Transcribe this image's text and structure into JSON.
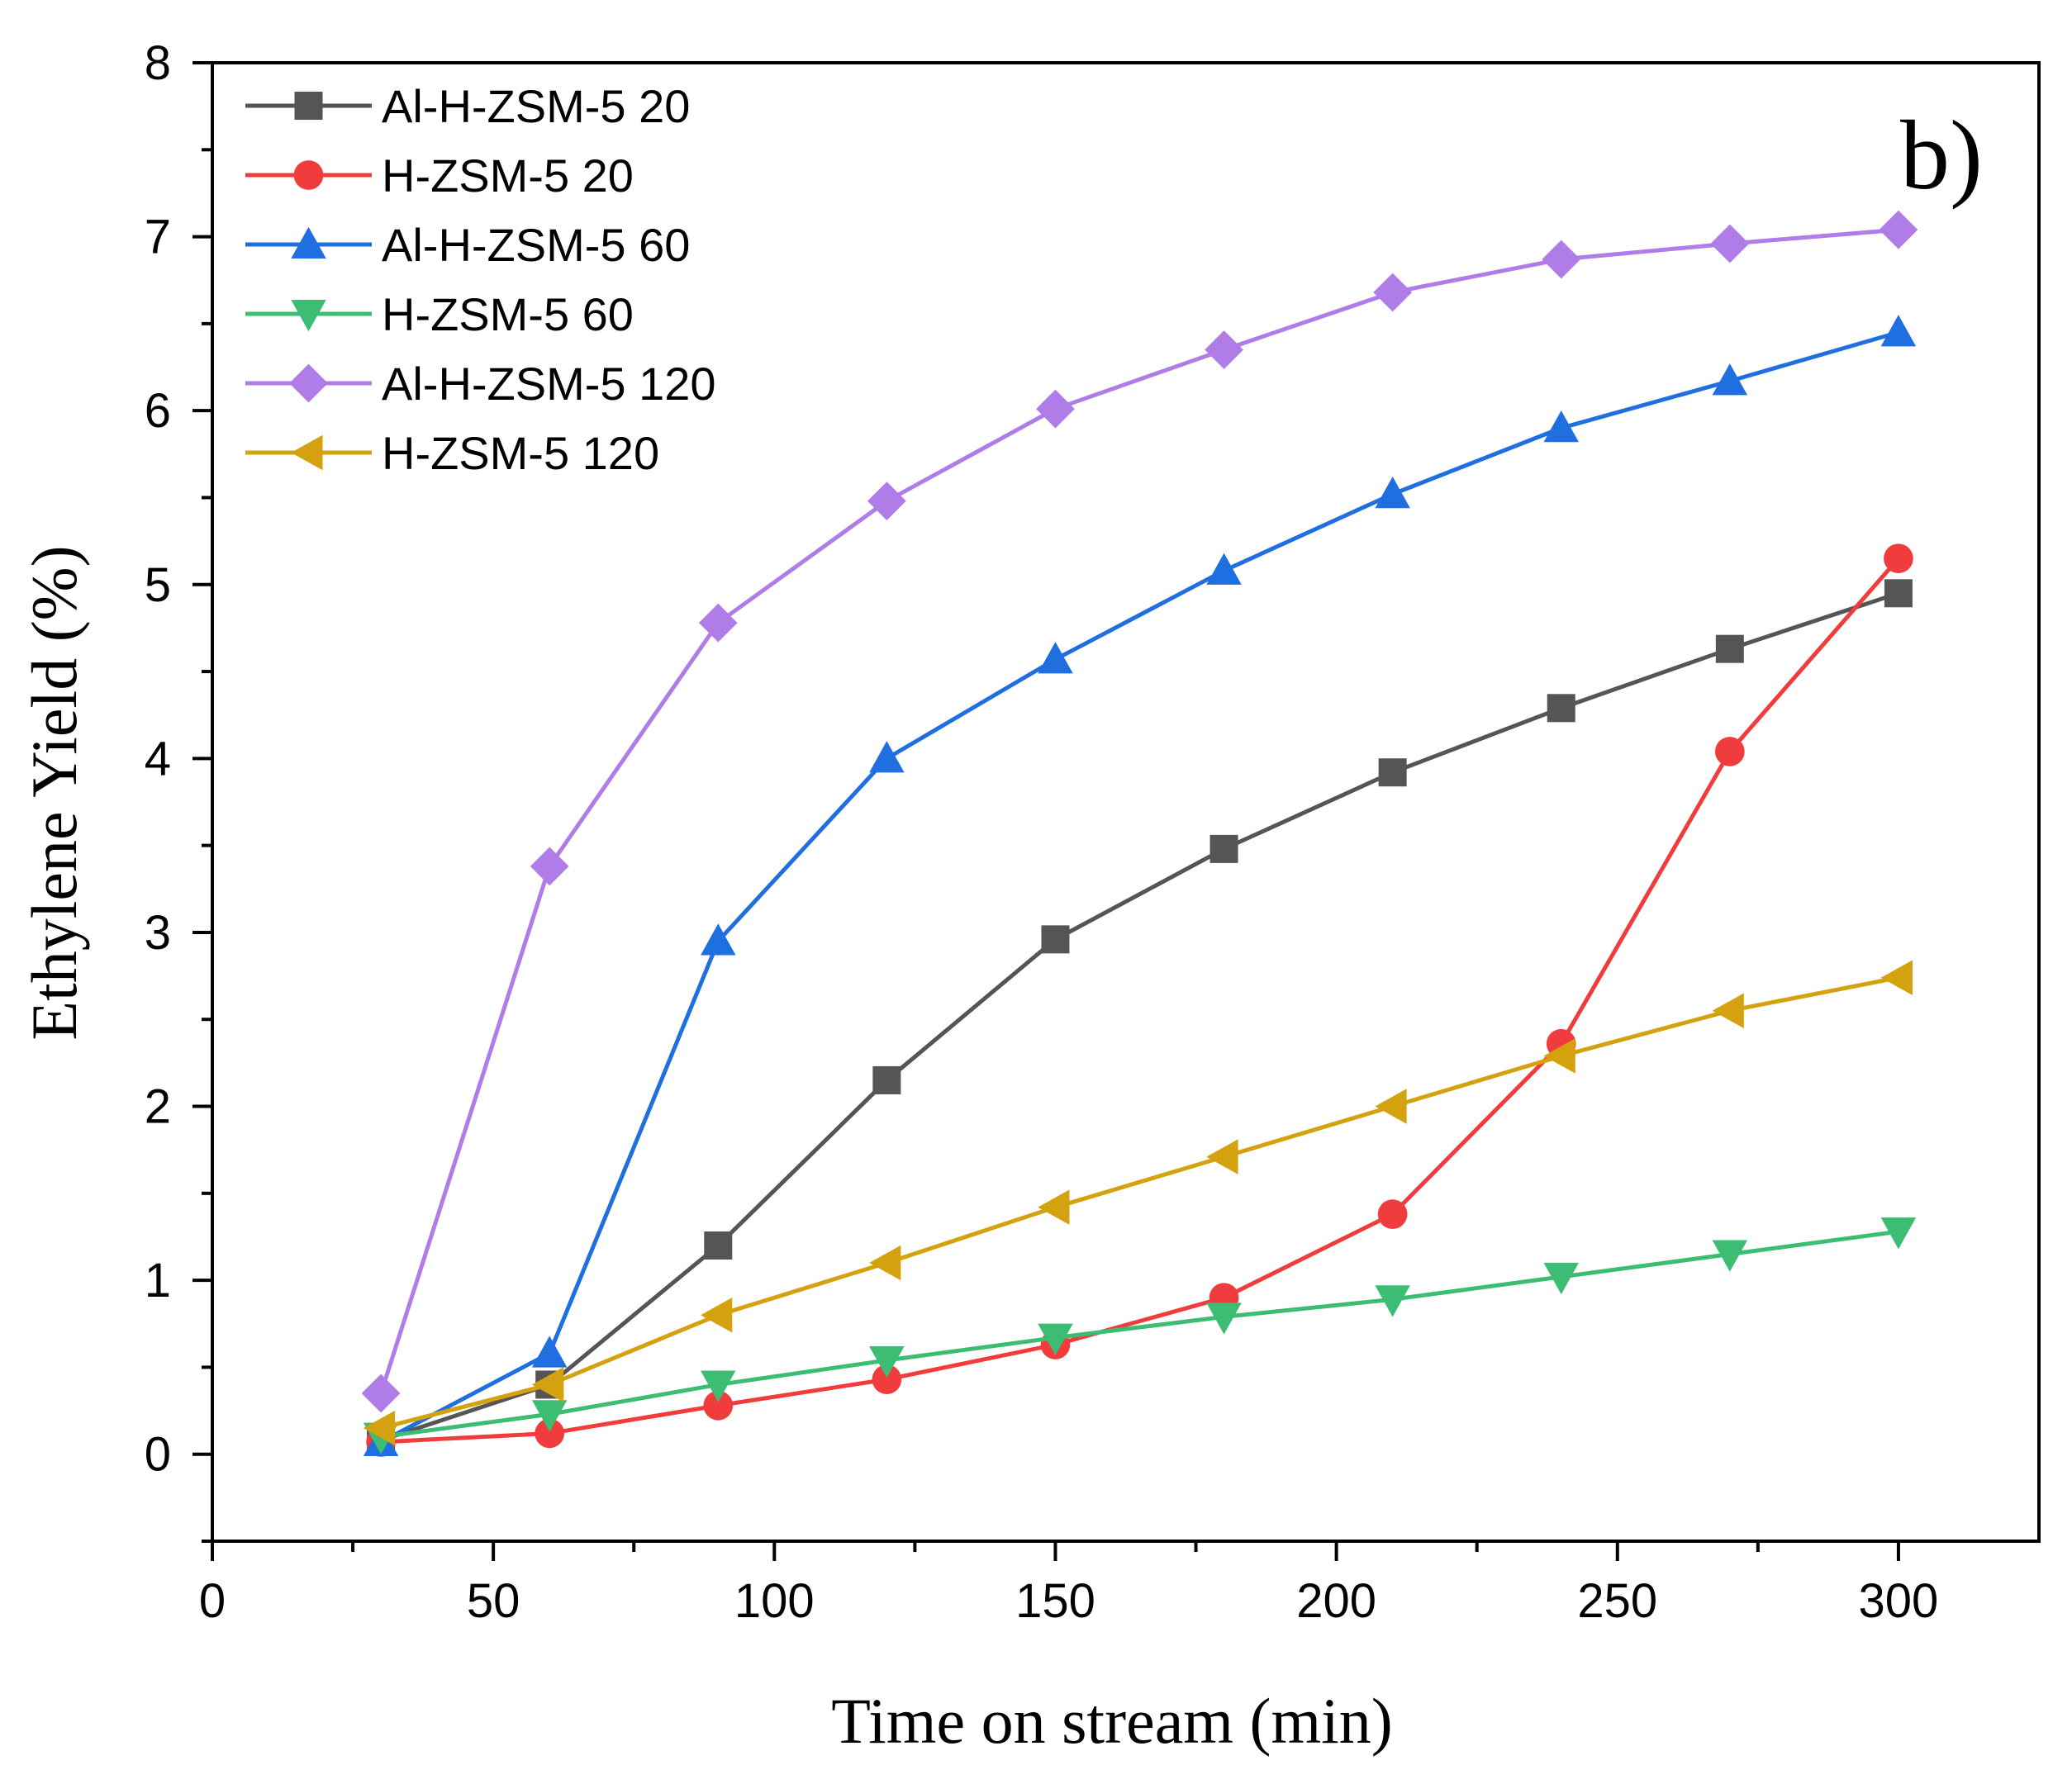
{
  "chart_data": {
    "type": "line",
    "panel_label": "b)",
    "title": "",
    "xlabel": "Time on stream (min)",
    "ylabel": "Ethylene Yield (%)",
    "xlim": [
      0,
      325
    ],
    "ylim": [
      -0.5,
      8
    ],
    "xticks": [
      0,
      50,
      100,
      150,
      200,
      250,
      300
    ],
    "yticks": [
      0,
      1,
      2,
      3,
      4,
      5,
      6,
      7,
      8
    ],
    "x": [
      30,
      60,
      90,
      120,
      150,
      180,
      210,
      240,
      270,
      300
    ],
    "legend_position": "top-left",
    "grid": false,
    "series": [
      {
        "name": "Al-H-ZSM-5 20",
        "color": "#555555",
        "marker": "square",
        "values": [
          0.08,
          0.4,
          1.2,
          2.15,
          2.96,
          3.48,
          3.92,
          4.29,
          4.63,
          4.95
        ]
      },
      {
        "name": "H-ZSM-5 20",
        "color": "#f03c3c",
        "marker": "circle",
        "values": [
          0.07,
          0.12,
          0.28,
          0.43,
          0.63,
          0.9,
          1.38,
          2.36,
          4.04,
          5.15
        ]
      },
      {
        "name": "Al-H-ZSM-5 60",
        "color": "#1f6fe0",
        "marker": "triangle-up",
        "values": [
          0.07,
          0.58,
          2.95,
          4.0,
          4.57,
          5.08,
          5.52,
          5.9,
          6.17,
          6.45
        ]
      },
      {
        "name": "H-ZSM-5 60",
        "color": "#3dbd74",
        "marker": "triangle-down",
        "values": [
          0.1,
          0.23,
          0.4,
          0.54,
          0.67,
          0.79,
          0.89,
          1.02,
          1.15,
          1.28
        ]
      },
      {
        "name": "Al-H-ZSM-5 120",
        "color": "#b07ce8",
        "marker": "diamond",
        "values": [
          0.35,
          3.38,
          4.78,
          5.48,
          6.01,
          6.35,
          6.68,
          6.87,
          6.96,
          7.04
        ]
      },
      {
        "name": "H-ZSM-5 120",
        "color": "#d4a20e",
        "marker": "triangle-left",
        "values": [
          0.15,
          0.4,
          0.8,
          1.1,
          1.42,
          1.71,
          2.0,
          2.29,
          2.55,
          2.74
        ]
      }
    ]
  }
}
